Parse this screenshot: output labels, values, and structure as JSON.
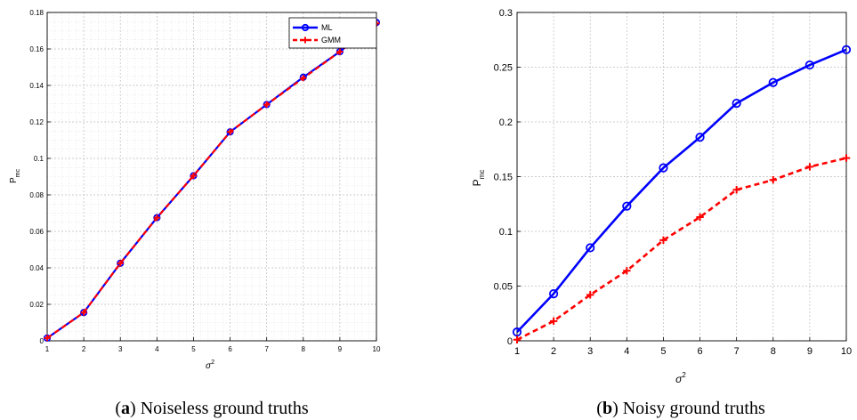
{
  "chart_data": [
    {
      "type": "line",
      "caption_tag": "a",
      "caption_text": " Noiseless ground truths",
      "xlabel": "σ",
      "xlabel_sup": "2",
      "ylabel": "P",
      "ylabel_sub": "mc",
      "xlim": [
        1,
        10
      ],
      "ylim": [
        0,
        0.18
      ],
      "xticks": [
        1,
        2,
        3,
        4,
        5,
        6,
        7,
        8,
        9,
        10
      ],
      "yticks": [
        0,
        0.02,
        0.04,
        0.06,
        0.08,
        0.1,
        0.12,
        0.14,
        0.16,
        0.18
      ],
      "ytick_labels": [
        "0",
        "0.02",
        "0.04",
        "0.06",
        "0.08",
        "0.1",
        "0.12",
        "0.14",
        "0.16",
        "0.18"
      ],
      "grid": true,
      "minor_grid": true,
      "legend_position": "top-right",
      "x": [
        1,
        2,
        3,
        4,
        5,
        6,
        7,
        8,
        9,
        10
      ],
      "series": [
        {
          "name": "ML",
          "color": "#0000ff",
          "marker": "circle",
          "dash": "solid",
          "values": [
            0.0015,
            0.0155,
            0.0425,
            0.0675,
            0.0905,
            0.1145,
            0.1295,
            0.1445,
            0.1585,
            0.1745
          ]
        },
        {
          "name": "GMM",
          "color": "#ff0000",
          "marker": "plus",
          "dash": "dashed",
          "values": [
            0.0015,
            0.0155,
            0.0425,
            0.0675,
            0.0905,
            0.1145,
            0.1295,
            0.144,
            0.1585,
            0.174
          ]
        }
      ]
    },
    {
      "type": "line",
      "caption_tag": "b",
      "caption_text": " Noisy ground truths",
      "xlabel": "σ",
      "xlabel_sup": "2",
      "ylabel": "P",
      "ylabel_sub": "mc",
      "xlim": [
        1,
        10
      ],
      "ylim": [
        0,
        0.3
      ],
      "xticks": [
        1,
        2,
        3,
        4,
        5,
        6,
        7,
        8,
        9,
        10
      ],
      "yticks": [
        0,
        0.05,
        0.1,
        0.15,
        0.2,
        0.25,
        0.3
      ],
      "ytick_labels": [
        "0",
        "0.05",
        "0.1",
        "0.15",
        "0.2",
        "0.25",
        "0.3"
      ],
      "grid": true,
      "minor_grid": false,
      "x": [
        1,
        2,
        3,
        4,
        5,
        6,
        7,
        8,
        9,
        10
      ],
      "series": [
        {
          "color": "#0000ff",
          "marker": "circle",
          "dash": "solid",
          "values": [
            0.008,
            0.043,
            0.085,
            0.123,
            0.158,
            0.186,
            0.217,
            0.236,
            0.252,
            0.266
          ]
        },
        {
          "color": "#ff0000",
          "marker": "plus",
          "dash": "dashed",
          "values": [
            0.001,
            0.018,
            0.042,
            0.064,
            0.092,
            0.113,
            0.138,
            0.147,
            0.159,
            0.167
          ]
        }
      ]
    }
  ]
}
